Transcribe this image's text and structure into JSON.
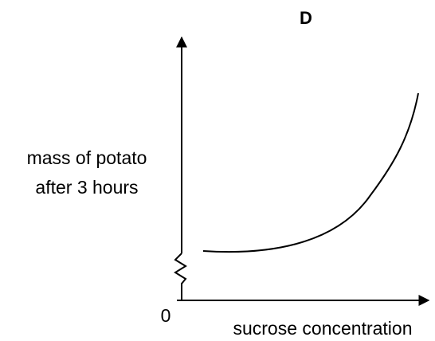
{
  "title": "D",
  "y_axis_label": {
    "line1": "mass of potato",
    "line2": "after 3 hours"
  },
  "origin_label": "0",
  "x_axis_label": "sucrose concentration"
}
